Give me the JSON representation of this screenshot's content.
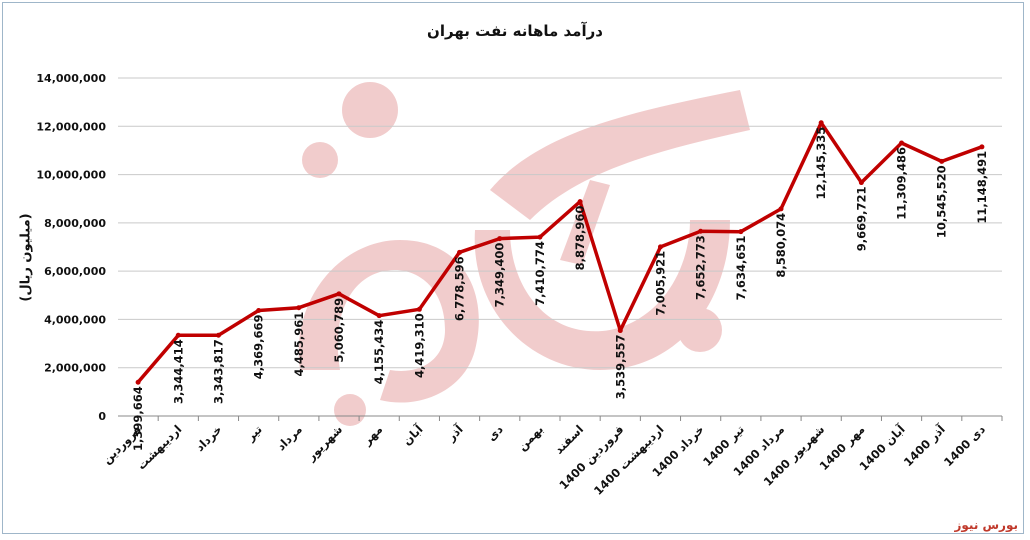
{
  "brand": "بورس نیوز",
  "colors": {
    "line": "#c00000",
    "grid": "#c9c9c9",
    "watermark": "#e6a3a3",
    "accent": "#c0392b"
  },
  "chart_data": {
    "type": "line",
    "title": "درآمد ماهانه نفت بهران",
    "xlabel": "",
    "ylabel": "(میلیون ریال)",
    "ylim": [
      0,
      14000000
    ],
    "grid": true,
    "yticks": [
      {
        "value": 0,
        "label": "0"
      },
      {
        "value": 2000000,
        "label": "2,000,000"
      },
      {
        "value": 4000000,
        "label": "4,000,000"
      },
      {
        "value": 6000000,
        "label": "6,000,000"
      },
      {
        "value": 8000000,
        "label": "8,000,000"
      },
      {
        "value": 10000000,
        "label": "10,000,000"
      },
      {
        "value": 12000000,
        "label": "12,000,000"
      },
      {
        "value": 14000000,
        "label": "14,000,000"
      }
    ],
    "categories": [
      "فروردین",
      "اردیبهشت",
      "خرداد",
      "تیر",
      "مرداد",
      "شهریور",
      "مهر",
      "آبان",
      "آذر",
      "دی",
      "بهمن",
      "اسفند",
      "فروردین 1400",
      "اردیبهشت 1400",
      "خرداد 1400",
      "تیر 1400",
      "مرداد 1400",
      "شهریور 1400",
      "مهر 1400",
      "آبان 1400",
      "آذر 1400",
      "دی 1400"
    ],
    "series": [
      {
        "values": [
          1399664,
          3344414,
          3343817,
          4369669,
          4485961,
          5060789,
          4155434,
          4419310,
          6778596,
          7349400,
          7410774,
          8878960,
          3539557,
          7005921,
          7652773,
          7634651,
          8580074,
          12145335,
          9669721,
          11309486,
          10545520,
          11148491
        ],
        "labels": [
          "1,399,664",
          "3,344,414",
          "3,343,817",
          "4,369,669",
          "4,485,961",
          "5,060,789",
          "4,155,434",
          "4,419,310",
          "6,778,596",
          "7,349,400",
          "7,410,774",
          "8,878,960",
          "3,539,557",
          "7,005,921",
          "7,652,773",
          "7,634,651",
          "8,580,074",
          "12,145,335",
          "9,669,721",
          "11,309,486",
          "10,545,520",
          "11,148,491"
        ]
      }
    ]
  }
}
